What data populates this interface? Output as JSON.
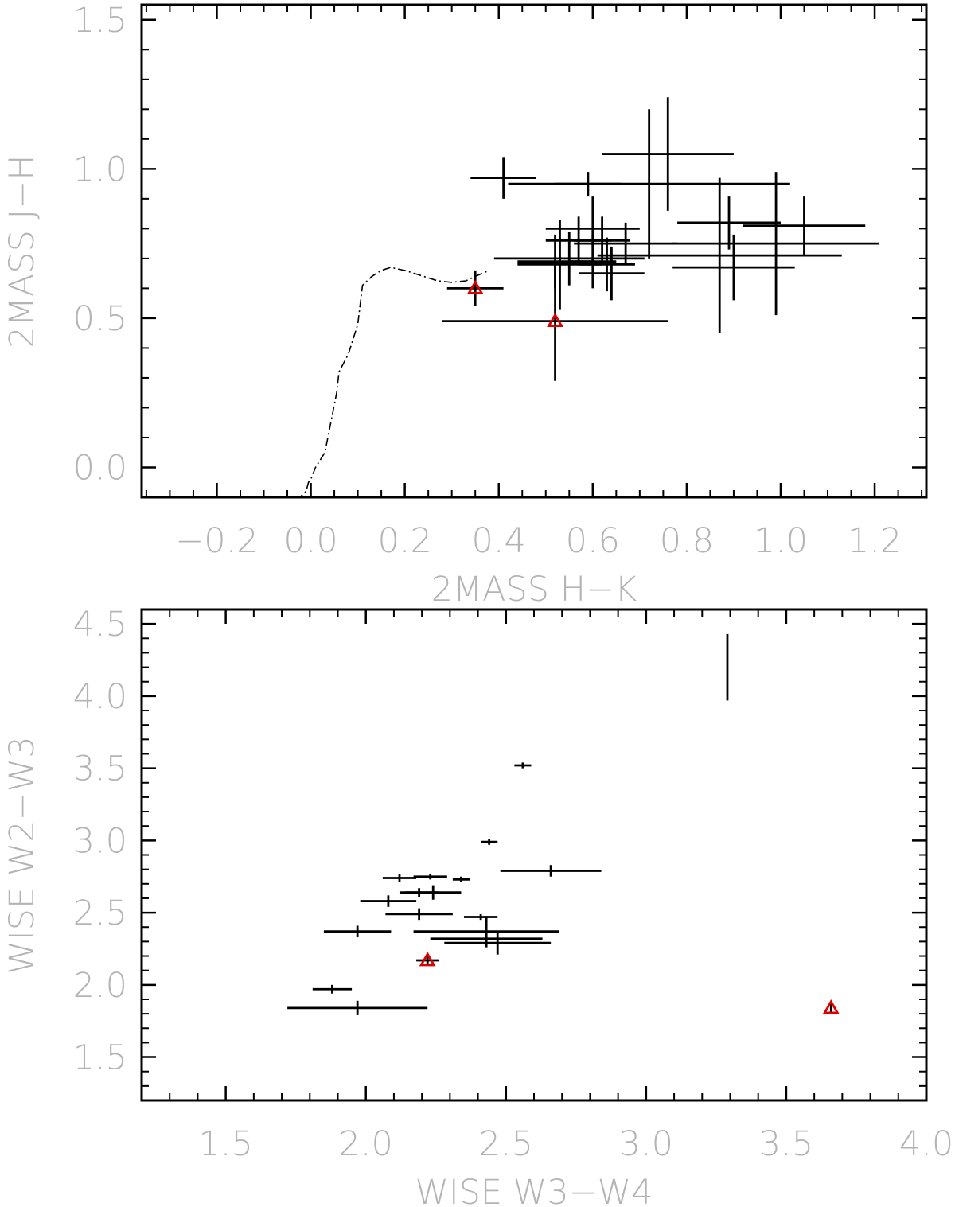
{
  "chart_data": [
    {
      "type": "scatter",
      "xlabel": "2MASS H−K",
      "ylabel": "2MASS J−H",
      "xlim": [
        -0.36,
        1.31
      ],
      "ylim": [
        -0.1,
        1.55
      ],
      "x_major_ticks": [
        -0.2,
        0.0,
        0.2,
        0.4,
        0.6,
        0.8,
        1.0,
        1.2
      ],
      "x_tick_labels": [
        "−0.2",
        "0.0",
        "0.2",
        "0.4",
        "0.6",
        "0.8",
        "1.0",
        "1.2"
      ],
      "y_major_ticks": [
        0.0,
        0.5,
        1.0,
        1.5
      ],
      "y_tick_labels": [
        "0.0",
        "0.5",
        "1.0",
        "1.5"
      ],
      "x_minor_step": 0.05,
      "y_minor_step": 0.1,
      "grid": false,
      "points": [
        {
          "x": 0.41,
          "y": 0.97,
          "xerr": 0.07,
          "yerr": 0.07
        },
        {
          "x": 0.59,
          "y": 0.95,
          "xerr": 0.07,
          "yerr": 0.04
        },
        {
          "x": 0.76,
          "y": 1.05,
          "xerr": 0.14,
          "yerr": 0.19
        },
        {
          "x": 0.72,
          "y": 0.95,
          "xerr": 0.3,
          "yerr": 0.25
        },
        {
          "x": 0.6,
          "y": 0.8,
          "xerr": 0.1,
          "yerr": 0.11
        },
        {
          "x": 0.57,
          "y": 0.76,
          "xerr": 0.07,
          "yerr": 0.08
        },
        {
          "x": 0.62,
          "y": 0.76,
          "xerr": 0.06,
          "yerr": 0.08
        },
        {
          "x": 0.67,
          "y": 0.75,
          "xerr": 0.11,
          "yerr": 0.07
        },
        {
          "x": 0.89,
          "y": 0.82,
          "xerr": 0.11,
          "yerr": 0.09
        },
        {
          "x": 1.05,
          "y": 0.81,
          "xerr": 0.13,
          "yerr": 0.1
        },
        {
          "x": 0.87,
          "y": 0.71,
          "xerr": 0.26,
          "yerr": 0.26
        },
        {
          "x": 0.99,
          "y": 0.75,
          "xerr": 0.22,
          "yerr": 0.24
        },
        {
          "x": 0.9,
          "y": 0.67,
          "xerr": 0.13,
          "yerr": 0.11
        },
        {
          "x": 0.55,
          "y": 0.7,
          "xerr": 0.16,
          "yerr": 0.09
        },
        {
          "x": 0.52,
          "y": 0.69,
          "xerr": 0.08,
          "yerr": 0.09
        },
        {
          "x": 0.53,
          "y": 0.68,
          "xerr": 0.09,
          "yerr": 0.15
        },
        {
          "x": 0.63,
          "y": 0.68,
          "xerr": 0.06,
          "yerr": 0.09
        },
        {
          "x": 0.6,
          "y": 0.69,
          "xerr": 0.05,
          "yerr": 0.09
        },
        {
          "x": 0.64,
          "y": 0.65,
          "xerr": 0.07,
          "yerr": 0.09
        },
        {
          "x": 0.35,
          "y": 0.6,
          "xerr": 0.06,
          "yerr": 0.06,
          "marker": "triangle"
        },
        {
          "x": 0.52,
          "y": 0.49,
          "xerr": 0.24,
          "yerr": 0.2,
          "marker": "triangle"
        }
      ],
      "curve_style": "dash-dot",
      "curve": [
        [
          -0.03,
          -0.11
        ],
        [
          -0.01,
          -0.08
        ],
        [
          -0.005,
          -0.05
        ],
        [
          0.0,
          -0.04
        ],
        [
          0.01,
          0.0
        ],
        [
          0.03,
          0.05
        ],
        [
          0.045,
          0.17
        ],
        [
          0.055,
          0.25
        ],
        [
          0.06,
          0.32
        ],
        [
          0.08,
          0.38
        ],
        [
          0.1,
          0.48
        ],
        [
          0.11,
          0.61
        ],
        [
          0.13,
          0.64
        ],
        [
          0.15,
          0.66
        ],
        [
          0.17,
          0.67
        ],
        [
          0.2,
          0.66
        ],
        [
          0.24,
          0.64
        ],
        [
          0.27,
          0.625
        ],
        [
          0.3,
          0.62
        ],
        [
          0.33,
          0.625
        ],
        [
          0.35,
          0.64
        ],
        [
          0.38,
          0.66
        ]
      ],
      "colors": {
        "markers": "#000000",
        "triangles": "#dd0000",
        "labels": "#b4b4b4"
      }
    },
    {
      "type": "scatter",
      "xlabel": "WISE W3−W4",
      "ylabel": "WISE W2−W3",
      "xlim": [
        1.2,
        4.0
      ],
      "ylim": [
        1.2,
        4.6
      ],
      "x_major_ticks": [
        1.5,
        2.0,
        2.5,
        3.0,
        3.5,
        4.0
      ],
      "x_tick_labels": [
        "1.5",
        "2.0",
        "2.5",
        "3.0",
        "3.5",
        "4.0"
      ],
      "y_major_ticks": [
        1.5,
        2.0,
        2.5,
        3.0,
        3.5,
        4.0,
        4.5
      ],
      "y_tick_labels": [
        "1.5",
        "2.0",
        "2.5",
        "3.0",
        "3.5",
        "4.0",
        "4.5"
      ],
      "x_minor_step": 0.1,
      "y_minor_step": 0.1,
      "grid": false,
      "points": [
        {
          "x": 3.29,
          "y": 4.2,
          "xerr": 0.0,
          "yerr": 0.23
        },
        {
          "x": 2.56,
          "y": 3.52,
          "xerr": 0.03,
          "yerr": 0.02
        },
        {
          "x": 2.44,
          "y": 2.99,
          "xerr": 0.03,
          "yerr": 0.02
        },
        {
          "x": 2.66,
          "y": 2.79,
          "xerr": 0.18,
          "yerr": 0.04
        },
        {
          "x": 2.12,
          "y": 2.74,
          "xerr": 0.06,
          "yerr": 0.03
        },
        {
          "x": 2.23,
          "y": 2.75,
          "xerr": 0.06,
          "yerr": 0.02
        },
        {
          "x": 2.34,
          "y": 2.73,
          "xerr": 0.03,
          "yerr": 0.02
        },
        {
          "x": 2.19,
          "y": 2.64,
          "xerr": 0.07,
          "yerr": 0.03
        },
        {
          "x": 2.24,
          "y": 2.64,
          "xerr": 0.1,
          "yerr": 0.05
        },
        {
          "x": 2.08,
          "y": 2.58,
          "xerr": 0.1,
          "yerr": 0.04
        },
        {
          "x": 2.19,
          "y": 2.49,
          "xerr": 0.12,
          "yerr": 0.04
        },
        {
          "x": 2.41,
          "y": 2.47,
          "xerr": 0.06,
          "yerr": 0.02
        },
        {
          "x": 1.97,
          "y": 2.37,
          "xerr": 0.12,
          "yerr": 0.04
        },
        {
          "x": 2.43,
          "y": 2.37,
          "xerr": 0.26,
          "yerr": 0.1
        },
        {
          "x": 2.43,
          "y": 2.32,
          "xerr": 0.2,
          "yerr": 0.06
        },
        {
          "x": 2.47,
          "y": 2.29,
          "xerr": 0.19,
          "yerr": 0.08
        },
        {
          "x": 1.88,
          "y": 1.97,
          "xerr": 0.07,
          "yerr": 0.03
        },
        {
          "x": 1.97,
          "y": 1.84,
          "xerr": 0.25,
          "yerr": 0.05
        },
        {
          "x": 2.22,
          "y": 2.17,
          "xerr": 0.04,
          "yerr": 0.03,
          "marker": "triangle"
        },
        {
          "x": 3.66,
          "y": 1.84,
          "xerr": 0.0,
          "yerr": 0.04,
          "marker": "triangle"
        }
      ],
      "colors": {
        "markers": "#000000",
        "triangles": "#dd0000",
        "labels": "#b4b4b4"
      }
    }
  ]
}
